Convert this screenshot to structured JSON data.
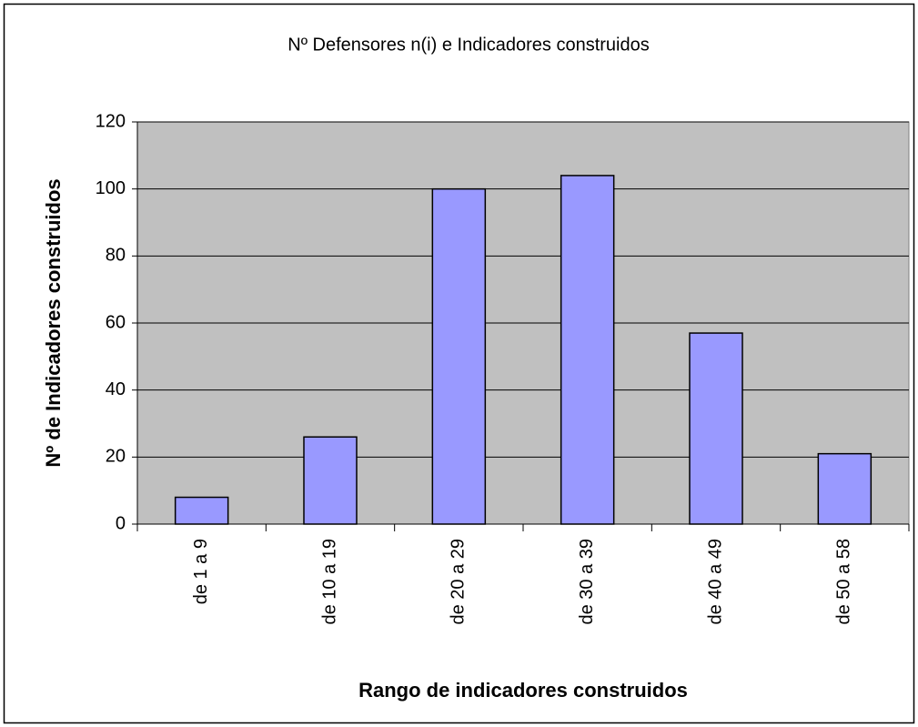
{
  "chart_data": {
    "type": "bar",
    "title": "Nº Defensores n(i) e Indicadores construidos",
    "xlabel": "Rango de indicadores construidos",
    "ylabel": "Nº de Indicadores construidos",
    "categories": [
      "de 1 a 9",
      "de 10 a 19",
      "de 20 a 29",
      "de 30 a 39",
      "de 40 a 49",
      "de 50 a 58"
    ],
    "values": [
      8,
      26,
      100,
      104,
      57,
      21
    ],
    "color": "#9999ff",
    "ylim": [
      0,
      120
    ],
    "yticks": [
      0,
      20,
      40,
      60,
      80,
      100,
      120
    ],
    "grid": true
  }
}
